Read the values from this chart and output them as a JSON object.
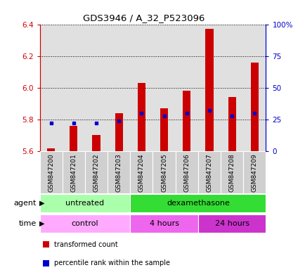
{
  "title": "GDS3946 / A_32_P523096",
  "samples": [
    "GSM847200",
    "GSM847201",
    "GSM847202",
    "GSM847203",
    "GSM847204",
    "GSM847205",
    "GSM847206",
    "GSM847207",
    "GSM847208",
    "GSM847209"
  ],
  "transformed_counts": [
    5.62,
    5.76,
    5.7,
    5.84,
    6.03,
    5.87,
    5.98,
    6.37,
    5.94,
    6.16
  ],
  "percentile_ranks": [
    22,
    22,
    22,
    24,
    30,
    28,
    30,
    32,
    28,
    30
  ],
  "ylim": [
    5.6,
    6.4
  ],
  "yticks": [
    5.6,
    5.8,
    6.0,
    6.2,
    6.4
  ],
  "y2lim": [
    0,
    100
  ],
  "y2ticks": [
    0,
    25,
    50,
    75,
    100
  ],
  "y2ticklabels": [
    "0",
    "25",
    "50",
    "75",
    "100%"
  ],
  "bar_color": "#cc0000",
  "dot_color": "#0000cc",
  "bar_bottom": 5.6,
  "agent_groups": [
    {
      "label": "untreated",
      "start": 0,
      "end": 4,
      "color": "#aaffaa"
    },
    {
      "label": "dexamethasone",
      "start": 4,
      "end": 10,
      "color": "#33dd33"
    }
  ],
  "time_groups": [
    {
      "label": "control",
      "start": 0,
      "end": 4,
      "color": "#ffaaff"
    },
    {
      "label": "4 hours",
      "start": 4,
      "end": 7,
      "color": "#ee66ee"
    },
    {
      "label": "24 hours",
      "start": 7,
      "end": 10,
      "color": "#cc33cc"
    }
  ],
  "legend_items": [
    {
      "label": "transformed count",
      "color": "#cc0000"
    },
    {
      "label": "percentile rank within the sample",
      "color": "#0000cc"
    }
  ],
  "tick_color_left": "#cc0000",
  "tick_color_right": "#0000cc",
  "plot_bg_color": "#e0e0e0",
  "fig_bg_color": "#ffffff"
}
